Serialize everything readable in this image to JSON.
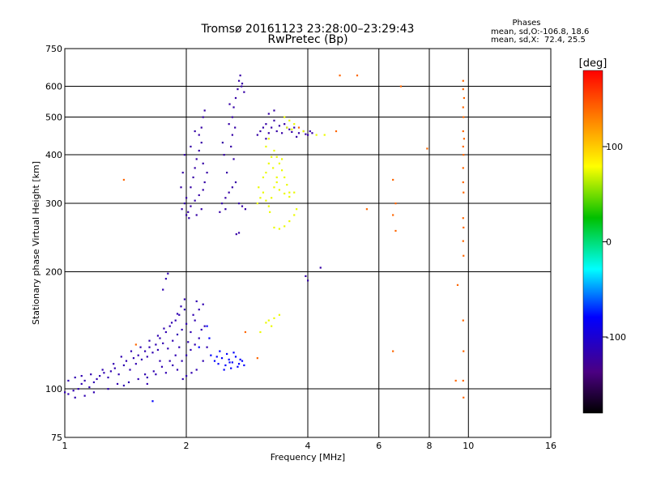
{
  "chart_data": {
    "type": "scatter",
    "title": "Tromsø 20161123 23:28:00–23:29:43",
    "subtitle": "RwPretec (Bp)",
    "xlabel": "Frequency [MHz]",
    "ylabel": "Stationary phase Virtual Height [km]",
    "x_scale": "log",
    "y_scale": "log",
    "xlim": [
      1,
      16
    ],
    "ylim": [
      75,
      750
    ],
    "xticks": [
      1,
      2,
      4,
      6,
      8,
      10,
      16
    ],
    "yticks": [
      75,
      100,
      200,
      300,
      400,
      500,
      600,
      750
    ],
    "x_gridlines": [
      2,
      4,
      6,
      8,
      10
    ],
    "y_gridlines": [
      100,
      200,
      300,
      400,
      500,
      600
    ],
    "grid": true,
    "phases_box": {
      "title": "Phases",
      "line1": "mean, sd,O:-106.8, 18.6",
      "line2": "mean, sd,X:  72.4, 25.5"
    },
    "colorbar": {
      "label": "[deg]",
      "min": -180,
      "max": 180,
      "ticks": [
        100,
        0,
        -100
      ]
    },
    "series": [
      {
        "role": "low_layer_O",
        "color_phase_deg": -115,
        "points": [
          [
            1.0,
            98
          ],
          [
            1.02,
            97
          ],
          [
            1.05,
            99
          ],
          [
            1.08,
            100
          ],
          [
            1.1,
            103
          ],
          [
            1.12,
            105
          ],
          [
            1.15,
            101
          ],
          [
            1.18,
            104
          ],
          [
            1.2,
            106
          ],
          [
            1.22,
            108
          ],
          [
            1.25,
            110
          ],
          [
            1.28,
            107
          ],
          [
            1.3,
            111
          ],
          [
            1.33,
            113
          ],
          [
            1.36,
            109
          ],
          [
            1.4,
            115
          ],
          [
            1.42,
            118
          ],
          [
            1.45,
            112
          ],
          [
            1.48,
            120
          ],
          [
            1.5,
            116
          ],
          [
            1.52,
            122
          ],
          [
            1.55,
            119
          ],
          [
            1.58,
            125
          ],
          [
            1.6,
            121
          ],
          [
            1.62,
            128
          ],
          [
            1.65,
            124
          ],
          [
            1.68,
            130
          ],
          [
            1.7,
            126
          ],
          [
            1.72,
            135
          ],
          [
            1.75,
            131
          ],
          [
            1.78,
            140
          ],
          [
            1.8,
            127
          ],
          [
            1.82,
            145
          ],
          [
            1.85,
            133
          ],
          [
            1.88,
            150
          ],
          [
            1.9,
            138
          ],
          [
            1.92,
            155
          ],
          [
            1.95,
            142
          ],
          [
            1.98,
            160
          ],
          [
            2.0,
            147
          ],
          [
            1.02,
            105
          ],
          [
            1.06,
            107
          ],
          [
            1.1,
            108
          ],
          [
            1.16,
            109
          ],
          [
            1.24,
            112
          ],
          [
            1.32,
            116
          ],
          [
            1.38,
            121
          ],
          [
            1.46,
            125
          ],
          [
            1.54,
            128
          ],
          [
            1.62,
            133
          ],
          [
            1.7,
            137
          ],
          [
            1.76,
            143
          ],
          [
            1.84,
            148
          ],
          [
            1.9,
            156
          ],
          [
            1.94,
            163
          ],
          [
            1.98,
            170
          ],
          [
            1.75,
            180
          ],
          [
            1.78,
            192
          ],
          [
            1.8,
            198
          ],
          [
            1.72,
            118
          ],
          [
            1.85,
            115
          ],
          [
            1.9,
            112
          ],
          [
            1.95,
            118
          ],
          [
            2.0,
            122
          ],
          [
            2.05,
            126
          ],
          [
            2.1,
            130
          ],
          [
            2.15,
            135
          ],
          [
            2.05,
            140
          ],
          [
            2.1,
            150
          ],
          [
            2.15,
            160
          ],
          [
            2.2,
            165
          ],
          [
            2.22,
            145
          ],
          [
            2.25,
            128
          ],
          [
            2.2,
            118
          ],
          [
            2.12,
            112
          ],
          [
            2.06,
            110
          ],
          [
            2.0,
            108
          ],
          [
            1.96,
            106
          ],
          [
            1.6,
            103
          ],
          [
            1.4,
            102
          ],
          [
            2.08,
            155
          ],
          [
            2.18,
            142
          ],
          [
            2.12,
            168
          ],
          [
            2.02,
            132
          ],
          [
            1.92,
            128
          ],
          [
            1.88,
            122
          ],
          [
            1.82,
            118
          ],
          [
            1.74,
            114
          ],
          [
            1.66,
            111
          ],
          [
            1.58,
            109
          ],
          [
            1.06,
            95
          ],
          [
            1.12,
            96
          ],
          [
            1.18,
            98
          ],
          [
            1.28,
            100
          ],
          [
            1.35,
            103
          ],
          [
            1.44,
            104
          ],
          [
            1.52,
            106
          ],
          [
            1.6,
            107
          ],
          [
            1.68,
            109
          ],
          [
            1.78,
            110
          ]
        ]
      },
      {
        "role": "low_layer_fringe",
        "color_phase_deg": -80,
        "points": [
          [
            2.35,
            118
          ],
          [
            2.4,
            116
          ],
          [
            2.45,
            120
          ],
          [
            2.5,
            115
          ],
          [
            2.55,
            119
          ],
          [
            2.6,
            117
          ],
          [
            2.65,
            121
          ],
          [
            2.7,
            116
          ],
          [
            2.75,
            118
          ],
          [
            2.3,
            122
          ],
          [
            2.42,
            125
          ],
          [
            2.52,
            123
          ],
          [
            2.62,
            124
          ],
          [
            2.48,
            112
          ],
          [
            2.58,
            113
          ],
          [
            2.68,
            114
          ],
          [
            2.78,
            115
          ],
          [
            2.38,
            121
          ],
          [
            2.56,
            117
          ],
          [
            2.72,
            119
          ],
          [
            1.65,
            93
          ],
          [
            2.15,
            128
          ],
          [
            2.28,
            135
          ],
          [
            2.25,
            145
          ]
        ]
      },
      {
        "role": "F_layer_O",
        "color_phase_deg": -120,
        "points": [
          [
            1.95,
            290
          ],
          [
            1.98,
            300
          ],
          [
            2.0,
            310
          ],
          [
            2.02,
            285
          ],
          [
            2.05,
            330
          ],
          [
            2.08,
            350
          ],
          [
            2.1,
            370
          ],
          [
            2.12,
            390
          ],
          [
            2.15,
            410
          ],
          [
            2.18,
            430
          ],
          [
            2.0,
            280
          ],
          [
            2.05,
            295
          ],
          [
            2.1,
            305
          ],
          [
            2.15,
            315
          ],
          [
            2.2,
            325
          ],
          [
            2.22,
            340
          ],
          [
            2.25,
            360
          ],
          [
            2.2,
            380
          ],
          [
            2.15,
            450
          ],
          [
            2.18,
            470
          ],
          [
            2.2,
            500
          ],
          [
            2.22,
            520
          ],
          [
            2.1,
            460
          ],
          [
            2.05,
            420
          ],
          [
            1.98,
            400
          ],
          [
            1.96,
            360
          ],
          [
            1.94,
            330
          ],
          [
            2.03,
            275
          ],
          [
            2.12,
            280
          ],
          [
            2.18,
            290
          ],
          [
            2.45,
            300
          ],
          [
            2.5,
            310
          ],
          [
            2.55,
            320
          ],
          [
            2.6,
            330
          ],
          [
            2.65,
            340
          ],
          [
            2.7,
            300
          ],
          [
            2.75,
            295
          ],
          [
            2.8,
            290
          ],
          [
            2.5,
            290
          ],
          [
            2.42,
            285
          ],
          [
            2.55,
            480
          ],
          [
            2.6,
            500
          ],
          [
            2.62,
            530
          ],
          [
            2.65,
            560
          ],
          [
            2.68,
            590
          ],
          [
            2.7,
            620
          ],
          [
            2.72,
            640
          ],
          [
            2.75,
            610
          ],
          [
            2.6,
            450
          ],
          [
            2.58,
            420
          ],
          [
            2.62,
            390
          ],
          [
            2.52,
            360
          ],
          [
            2.66,
            250
          ],
          [
            2.7,
            252
          ],
          [
            2.48,
            400
          ],
          [
            2.46,
            430
          ],
          [
            2.56,
            540
          ],
          [
            2.74,
            600
          ],
          [
            2.78,
            580
          ],
          [
            2.64,
            470
          ],
          [
            3.0,
            450
          ],
          [
            3.05,
            460
          ],
          [
            3.1,
            470
          ],
          [
            3.15,
            480
          ],
          [
            3.2,
            455
          ],
          [
            3.25,
            470
          ],
          [
            3.3,
            490
          ],
          [
            3.35,
            460
          ],
          [
            3.4,
            475
          ],
          [
            3.5,
            480
          ],
          [
            3.6,
            465
          ],
          [
            3.7,
            470
          ],
          [
            3.8,
            455
          ],
          [
            3.9,
            460
          ],
          [
            4.0,
            450
          ],
          [
            4.1,
            455
          ],
          [
            3.2,
            510
          ],
          [
            3.3,
            520
          ],
          [
            3.15,
            440
          ],
          [
            3.45,
            455
          ],
          [
            3.75,
            445
          ],
          [
            3.95,
            452
          ],
          [
            4.05,
            460
          ],
          [
            3.55,
            470
          ],
          [
            3.65,
            458
          ],
          [
            4.3,
            205
          ],
          [
            3.95,
            195
          ],
          [
            4.0,
            190
          ]
        ]
      },
      {
        "role": "F_layer_X",
        "color_phase_deg": 75,
        "points": [
          [
            3.0,
            300
          ],
          [
            3.05,
            310
          ],
          [
            3.1,
            320
          ],
          [
            3.15,
            305
          ],
          [
            3.2,
            295
          ],
          [
            3.25,
            310
          ],
          [
            3.3,
            330
          ],
          [
            3.35,
            350
          ],
          [
            3.4,
            325
          ],
          [
            3.5,
            318
          ],
          [
            3.6,
            312
          ],
          [
            3.7,
            320
          ],
          [
            3.15,
            360
          ],
          [
            3.2,
            380
          ],
          [
            3.25,
            395
          ],
          [
            3.3,
            410
          ],
          [
            3.35,
            395
          ],
          [
            3.4,
            380
          ],
          [
            3.45,
            365
          ],
          [
            3.5,
            350
          ],
          [
            3.55,
            335
          ],
          [
            3.6,
            320
          ],
          [
            3.3,
            260
          ],
          [
            3.4,
            258
          ],
          [
            3.5,
            262
          ],
          [
            3.6,
            270
          ],
          [
            3.7,
            280
          ],
          [
            3.75,
            290
          ],
          [
            3.35,
            340
          ],
          [
            3.1,
            350
          ],
          [
            3.15,
            420
          ],
          [
            3.2,
            440
          ],
          [
            3.5,
            500
          ],
          [
            3.6,
            490
          ],
          [
            3.7,
            480
          ],
          [
            3.55,
            470
          ],
          [
            3.65,
            465
          ],
          [
            3.9,
            460
          ],
          [
            4.2,
            450
          ],
          [
            4.4,
            450
          ],
          [
            3.2,
            150
          ],
          [
            3.25,
            145
          ],
          [
            3.3,
            152
          ],
          [
            3.15,
            148
          ],
          [
            3.4,
            155
          ],
          [
            3.05,
            140
          ],
          [
            3.28,
            370
          ],
          [
            3.45,
            390
          ],
          [
            3.02,
            330
          ],
          [
            3.22,
            285
          ]
        ]
      },
      {
        "role": "scattered",
        "color_phase_deg": 140,
        "points": [
          [
            9.7,
            620
          ],
          [
            9.7,
            590
          ],
          [
            9.75,
            560
          ],
          [
            9.7,
            530
          ],
          [
            9.72,
            500
          ],
          [
            9.7,
            460
          ],
          [
            9.75,
            440
          ],
          [
            9.7,
            420
          ],
          [
            9.72,
            400
          ],
          [
            9.7,
            370
          ],
          [
            9.7,
            340
          ],
          [
            9.72,
            320
          ],
          [
            9.7,
            275
          ],
          [
            9.72,
            260
          ],
          [
            9.7,
            240
          ],
          [
            9.72,
            220
          ],
          [
            9.7,
            150
          ],
          [
            9.72,
            125
          ],
          [
            9.7,
            105
          ],
          [
            9.72,
            95
          ],
          [
            6.5,
            280
          ],
          [
            6.6,
            300
          ],
          [
            6.8,
            600
          ],
          [
            5.3,
            640
          ],
          [
            4.8,
            640
          ],
          [
            6.5,
            125
          ],
          [
            9.3,
            105
          ],
          [
            9.4,
            185
          ],
          [
            2.8,
            140
          ],
          [
            3.0,
            120
          ],
          [
            7.9,
            415
          ],
          [
            6.6,
            255
          ],
          [
            6.5,
            345
          ],
          [
            5.6,
            290
          ],
          [
            1.4,
            345
          ],
          [
            1.5,
            130
          ],
          [
            4.7,
            460
          ],
          [
            3.8,
            470
          ]
        ]
      }
    ]
  }
}
